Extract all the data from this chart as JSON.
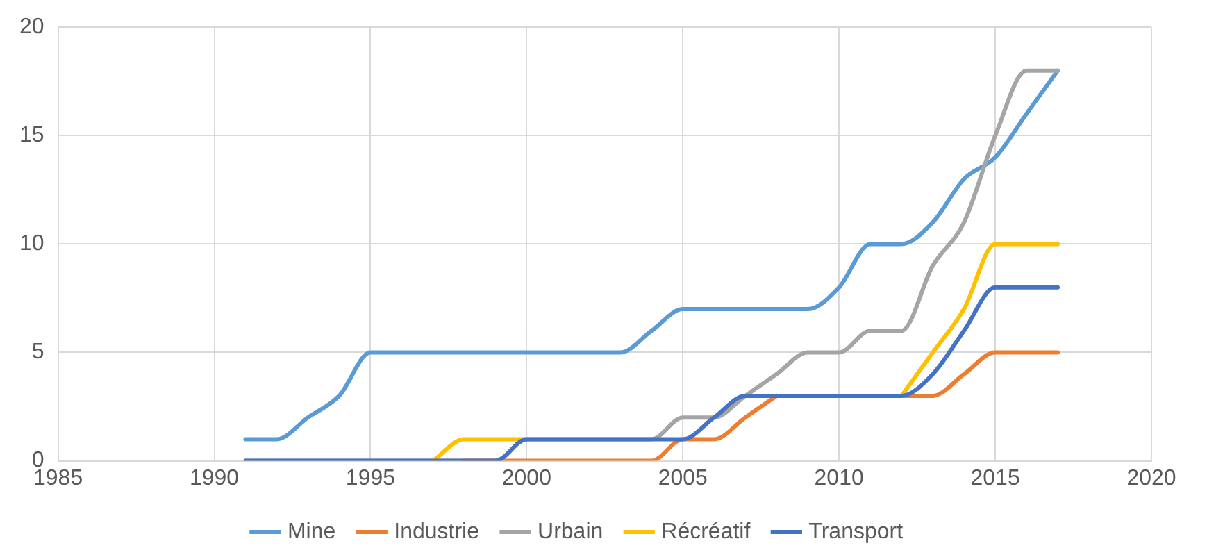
{
  "chart_data": {
    "type": "line",
    "x": [
      1991,
      1992,
      1993,
      1994,
      1995,
      1996,
      1997,
      1998,
      1999,
      2000,
      2001,
      2002,
      2003,
      2004,
      2005,
      2006,
      2007,
      2008,
      2009,
      2010,
      2011,
      2012,
      2013,
      2014,
      2015,
      2016,
      2017
    ],
    "series": [
      {
        "name": "Mine",
        "color": "#5b9bd5",
        "values": [
          1,
          1,
          2,
          3,
          5,
          5,
          5,
          5,
          5,
          5,
          5,
          5,
          5,
          6,
          7,
          7,
          7,
          7,
          7,
          8,
          10,
          10,
          11,
          13,
          14,
          16,
          18
        ]
      },
      {
        "name": "Industrie",
        "color": "#ed7d31",
        "values": [
          null,
          null,
          null,
          null,
          null,
          null,
          null,
          0,
          0,
          0,
          0,
          0,
          0,
          0,
          1,
          1,
          2,
          3,
          null,
          null,
          null,
          3,
          3,
          4,
          5,
          5,
          5
        ]
      },
      {
        "name": "Urbain",
        "color": "#a5a5a5",
        "values": [
          0,
          0,
          0,
          0,
          0,
          0,
          0,
          0,
          0,
          1,
          1,
          1,
          1,
          1,
          2,
          2,
          3,
          4,
          5,
          5,
          6,
          6,
          9,
          11,
          15,
          18,
          18
        ]
      },
      {
        "name": "Récréatif",
        "color": "#ffc000",
        "values": [
          null,
          null,
          null,
          null,
          null,
          null,
          0,
          1,
          1,
          1,
          null,
          null,
          null,
          null,
          null,
          null,
          null,
          null,
          null,
          null,
          null,
          3,
          5,
          7,
          10,
          10,
          10
        ]
      },
      {
        "name": "Transport",
        "color": "#4472c4",
        "values": [
          0,
          0,
          0,
          0,
          0,
          0,
          0,
          0,
          0,
          1,
          1,
          1,
          1,
          1,
          1,
          2,
          3,
          3,
          3,
          3,
          3,
          3,
          4,
          6,
          8,
          8,
          8
        ]
      }
    ],
    "xlim": [
      1985,
      2020
    ],
    "xticks": [
      1985,
      1990,
      1995,
      2000,
      2005,
      2010,
      2015,
      2020
    ],
    "ylim": [
      0,
      20
    ],
    "yticks": [
      0,
      5,
      10,
      15,
      20
    ],
    "grid": true,
    "legend": "bottom",
    "marker": "none",
    "line_style": "solid"
  }
}
